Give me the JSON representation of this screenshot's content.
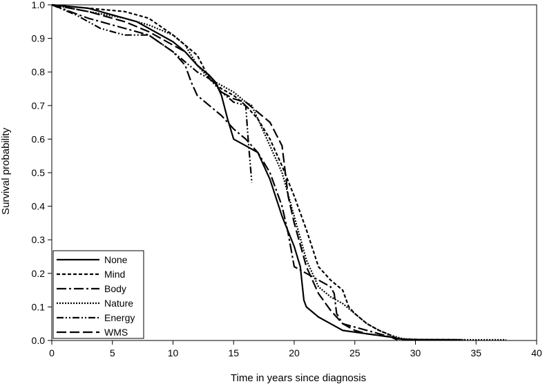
{
  "chart_data": {
    "type": "line",
    "title": "",
    "xlabel": "Time in years since diagnosis",
    "ylabel": "Survival probability",
    "xlim": [
      0,
      40
    ],
    "ylim": [
      0,
      1.0
    ],
    "xticks": [
      0,
      5,
      10,
      15,
      20,
      25,
      30,
      35,
      40
    ],
    "xtick_labels": [
      "0",
      "5",
      "10",
      "15",
      "20",
      "25",
      "30",
      "35",
      "40"
    ],
    "yticks": [
      0,
      0.1,
      0.2,
      0.3,
      0.4,
      0.5,
      0.6,
      0.7,
      0.8,
      0.9,
      1.0
    ],
    "ytick_labels": [
      "0.0",
      "0.1",
      "0.2",
      "0.3",
      "0.4",
      "0.5",
      "0.6",
      "0.7",
      "0.8",
      "0.9",
      "1.0"
    ],
    "grid": false,
    "legend": {
      "position": "bottom-left"
    },
    "series": [
      {
        "name": "None",
        "style": "solid",
        "color": "#000000",
        "x": [
          0,
          3,
          5,
          7,
          8,
          10,
          11,
          12,
          13,
          13.5,
          14,
          14.5,
          15,
          16,
          17,
          18,
          19,
          20,
          20.5,
          20.8,
          21,
          22,
          23,
          24,
          25,
          26,
          27,
          28,
          29,
          30,
          32,
          33.5
        ],
        "y": [
          1.0,
          0.99,
          0.97,
          0.95,
          0.93,
          0.89,
          0.86,
          0.82,
          0.79,
          0.77,
          0.73,
          0.66,
          0.6,
          0.58,
          0.56,
          0.48,
          0.37,
          0.28,
          0.22,
          0.12,
          0.1,
          0.07,
          0.05,
          0.03,
          0.025,
          0.02,
          0.015,
          0.01,
          0.003,
          0.002,
          0.002,
          0.002
        ]
      },
      {
        "name": "Mind",
        "style": "dashed",
        "color": "#000000",
        "x": [
          0,
          3,
          6,
          8,
          10,
          12,
          13,
          14,
          15,
          16,
          17,
          18,
          19,
          20,
          21,
          22,
          23,
          24,
          24.5,
          25,
          26,
          27,
          28,
          28.5,
          30,
          34
        ],
        "y": [
          1.0,
          0.99,
          0.98,
          0.96,
          0.91,
          0.85,
          0.78,
          0.75,
          0.73,
          0.7,
          0.66,
          0.6,
          0.52,
          0.43,
          0.33,
          0.22,
          0.18,
          0.15,
          0.1,
          0.08,
          0.05,
          0.03,
          0.015,
          0.005,
          0.003,
          0.002
        ]
      },
      {
        "name": "Body",
        "style": "dashdot",
        "color": "#000000",
        "x": [
          0,
          3,
          6,
          8,
          10,
          11,
          11.5,
          12,
          13,
          14,
          15,
          16,
          17,
          18,
          19,
          19.5,
          20,
          21,
          22,
          23,
          23.3,
          23.5,
          24,
          25,
          26,
          27,
          28,
          28.5
        ],
        "y": [
          1.0,
          0.96,
          0.93,
          0.91,
          0.86,
          0.82,
          0.77,
          0.73,
          0.7,
          0.67,
          0.63,
          0.6,
          0.56,
          0.5,
          0.4,
          0.32,
          0.22,
          0.2,
          0.18,
          0.16,
          0.14,
          0.08,
          0.05,
          0.04,
          0.03,
          0.02,
          0.01,
          0.002
        ]
      },
      {
        "name": "Nature",
        "style": "dotted",
        "color": "#000000",
        "x": [
          0,
          3,
          6,
          8,
          10,
          11,
          12,
          13,
          14,
          15,
          16,
          16.5,
          17,
          18,
          19,
          20,
          21,
          22,
          23,
          24,
          25,
          26,
          27,
          28,
          29,
          30,
          35,
          37.5
        ],
        "y": [
          1.0,
          0.98,
          0.96,
          0.94,
          0.91,
          0.88,
          0.82,
          0.78,
          0.76,
          0.74,
          0.71,
          0.7,
          0.66,
          0.58,
          0.5,
          0.37,
          0.24,
          0.16,
          0.13,
          0.11,
          0.08,
          0.05,
          0.03,
          0.015,
          0.005,
          0.003,
          0.002,
          0.002
        ]
      },
      {
        "name": "Energy",
        "style": "dashdotdot",
        "color": "#000000",
        "x": [
          0,
          2,
          4,
          5,
          6,
          8,
          10,
          11,
          12,
          13,
          14,
          15,
          16,
          16.2,
          16.5
        ],
        "y": [
          1.0,
          0.97,
          0.93,
          0.92,
          0.91,
          0.91,
          0.86,
          0.83,
          0.8,
          0.78,
          0.74,
          0.71,
          0.7,
          0.6,
          0.47
        ]
      },
      {
        "name": "WMS",
        "style": "longdash",
        "color": "#000000",
        "x": [
          0,
          3,
          6,
          8,
          10,
          11,
          12,
          13,
          14,
          15,
          16,
          17,
          18,
          19,
          19.5,
          20,
          21,
          22,
          23,
          24,
          25,
          26,
          27,
          28,
          28.5
        ],
        "y": [
          1.0,
          0.98,
          0.95,
          0.92,
          0.88,
          0.86,
          0.82,
          0.79,
          0.74,
          0.72,
          0.71,
          0.68,
          0.65,
          0.58,
          0.43,
          0.35,
          0.22,
          0.14,
          0.09,
          0.05,
          0.03,
          0.02,
          0.015,
          0.01,
          0.002
        ]
      }
    ]
  }
}
